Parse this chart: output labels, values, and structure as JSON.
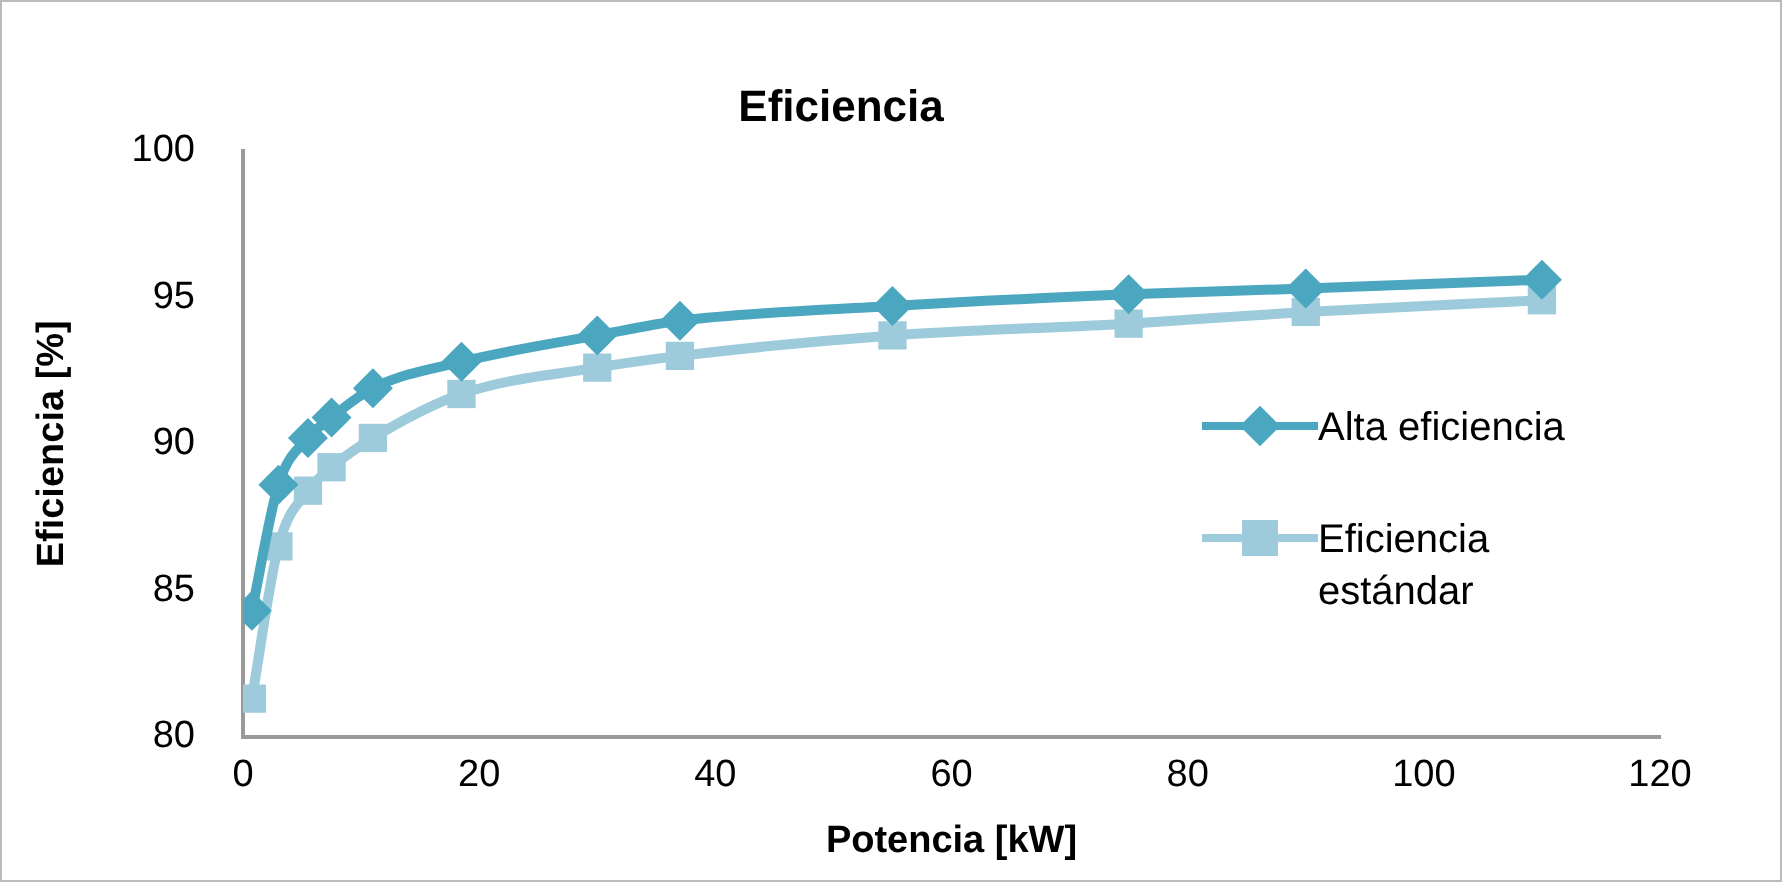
{
  "chart_data": {
    "type": "line",
    "title": "Eficiencia",
    "xlabel": "Potencia [kW]",
    "ylabel": "Eficiencia [%]",
    "x": [
      0.75,
      3,
      5.5,
      7.5,
      11,
      18.5,
      30,
      37,
      55,
      75,
      90,
      110
    ],
    "series": [
      {
        "name": "Alta eficiencia",
        "color": "#4ba7bf",
        "marker": "diamond",
        "values": [
          84.3,
          88.6,
          90.2,
          90.9,
          91.9,
          92.8,
          93.7,
          94.2,
          94.7,
          95.1,
          95.3,
          95.6
        ]
      },
      {
        "name": "Eficiencia estándar",
        "color": "#9dcbdc",
        "marker": "square",
        "values": [
          81.3,
          86.5,
          88.4,
          89.2,
          90.2,
          91.7,
          92.6,
          93.0,
          93.7,
          94.1,
          94.5,
          94.9
        ]
      }
    ],
    "xlim": [
      0,
      120
    ],
    "xticks": [
      0,
      20,
      40,
      60,
      80,
      100,
      120
    ],
    "ylim": [
      80,
      100
    ],
    "yticks": [
      80,
      85,
      90,
      95,
      100
    ],
    "grid": false,
    "legend": "right",
    "line_style": "solid"
  }
}
